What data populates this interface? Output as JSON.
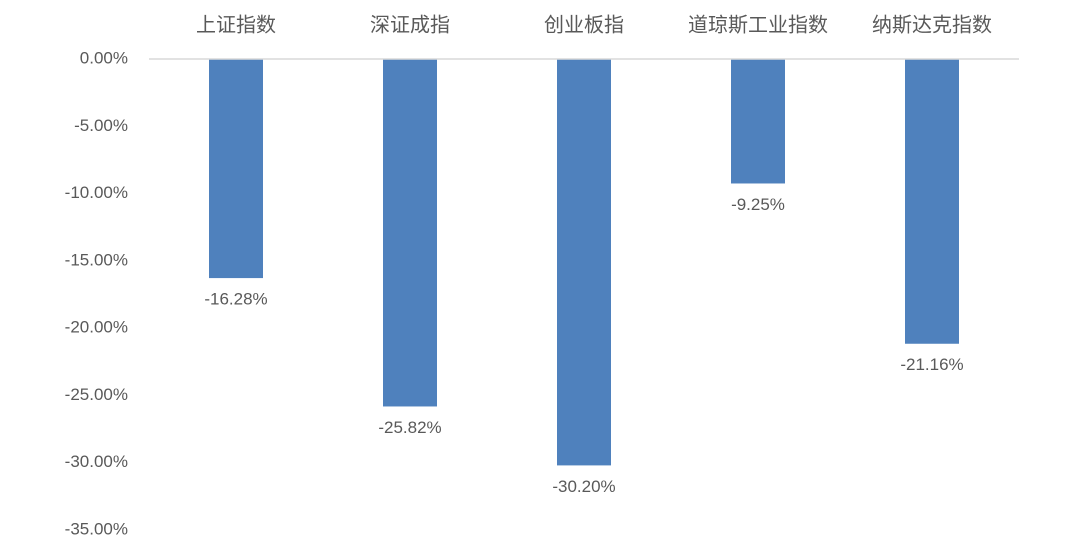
{
  "chart_data": {
    "type": "bar",
    "categories": [
      "上证指数",
      "深证成指",
      "创业板指",
      "道琼斯工业指数",
      "纳斯达克指数"
    ],
    "values": [
      -16.28,
      -25.82,
      -30.2,
      -9.25,
      -21.16
    ],
    "value_labels": [
      "-16.28%",
      "-25.82%",
      "-30.20%",
      "-9.25%",
      "-21.16%"
    ],
    "color": "#4f81bd",
    "ylim": [
      -35,
      0
    ],
    "yticks": [
      {
        "value": 0,
        "label": "0.00%"
      },
      {
        "value": -5,
        "label": "-5.00%"
      },
      {
        "value": -10,
        "label": "-10.00%"
      },
      {
        "value": -15,
        "label": "-15.00%"
      },
      {
        "value": -20,
        "label": "-20.00%"
      },
      {
        "value": -25,
        "label": "-25.00%"
      },
      {
        "value": -30,
        "label": "-30.00%"
      },
      {
        "value": -35,
        "label": "-35.00%"
      }
    ]
  }
}
